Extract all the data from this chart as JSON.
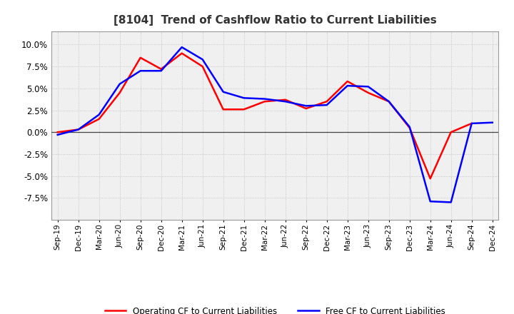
{
  "title": "[8104]  Trend of Cashflow Ratio to Current Liabilities",
  "x_labels": [
    "Sep-19",
    "Dec-19",
    "Mar-20",
    "Jun-20",
    "Sep-20",
    "Dec-20",
    "Mar-21",
    "Jun-21",
    "Sep-21",
    "Dec-21",
    "Mar-22",
    "Jun-22",
    "Sep-22",
    "Dec-22",
    "Mar-23",
    "Jun-23",
    "Sep-23",
    "Dec-23",
    "Mar-24",
    "Jun-24",
    "Sep-24",
    "Dec-24"
  ],
  "operating_cf": [
    0.0,
    0.3,
    1.5,
    4.5,
    8.5,
    7.2,
    9.0,
    7.5,
    2.6,
    2.6,
    3.5,
    3.7,
    2.7,
    3.5,
    5.8,
    4.5,
    3.5,
    0.5,
    -5.3,
    0.0,
    1.0,
    null
  ],
  "free_cf": [
    -0.3,
    0.3,
    2.0,
    5.5,
    7.0,
    7.0,
    9.7,
    8.3,
    4.6,
    3.9,
    3.8,
    3.5,
    3.0,
    3.1,
    5.3,
    5.2,
    3.5,
    0.6,
    -7.9,
    -8.0,
    1.0,
    1.1
  ],
  "operating_color": "#ff0000",
  "free_color": "#0000ff",
  "ylim": [
    -10.0,
    11.5
  ],
  "yticks": [
    -7.5,
    -5.0,
    -2.5,
    0.0,
    2.5,
    5.0,
    7.5,
    10.0
  ],
  "background_color": "#ffffff",
  "plot_bg_color": "#f0f0f0",
  "grid_color": "#bbbbbb",
  "title_fontsize": 11,
  "line_width": 1.8
}
